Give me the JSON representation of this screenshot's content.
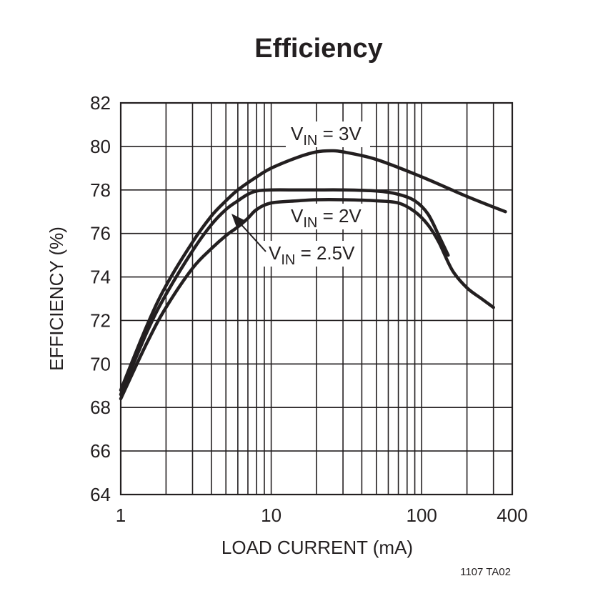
{
  "chart_data": {
    "type": "line",
    "title": "Efficiency",
    "xlabel": "LOAD CURRENT (mA)",
    "ylabel": "EFFICIENCY (%)",
    "xscale": "log",
    "xlim": [
      1,
      400
    ],
    "ylim": [
      64,
      82
    ],
    "x_ticks": [
      1,
      10,
      100,
      400
    ],
    "x_tick_labels": [
      "1",
      "10",
      "100",
      "400"
    ],
    "y_ticks": [
      64,
      66,
      68,
      70,
      72,
      74,
      76,
      78,
      80,
      82
    ],
    "y_tick_labels": [
      "64",
      "66",
      "68",
      "70",
      "72",
      "74",
      "76",
      "78",
      "80",
      "82"
    ],
    "grid": true,
    "series": [
      {
        "name": "VIN = 3V",
        "label_main": "V",
        "label_sub": "IN",
        "label_rest": " = 3V",
        "x": [
          1,
          1.5,
          2,
          3,
          4,
          5,
          6,
          8,
          10,
          15,
          20,
          25,
          30,
          50,
          100,
          200,
          360
        ],
        "y": [
          68.8,
          71.8,
          73.6,
          75.6,
          76.8,
          77.5,
          78.0,
          78.6,
          79.0,
          79.5,
          79.75,
          79.8,
          79.75,
          79.4,
          78.6,
          77.7,
          77.0
        ]
      },
      {
        "name": "VIN = 2.5V",
        "label_main": "V",
        "label_sub": "IN",
        "label_rest": " = 2.5V",
        "x": [
          1,
          1.5,
          2,
          3,
          4,
          5,
          6,
          7,
          8,
          10,
          15,
          20,
          30,
          50,
          70,
          90,
          110,
          130,
          150
        ],
        "y": [
          68.6,
          71.5,
          73.2,
          75.2,
          76.4,
          77.1,
          77.5,
          77.8,
          77.95,
          78.0,
          78.0,
          78.0,
          78.0,
          77.95,
          77.8,
          77.5,
          76.9,
          75.9,
          75.0
        ]
      },
      {
        "name": "VIN = 2V",
        "label_main": "V",
        "label_sub": "IN",
        "label_rest": " = 2V",
        "x": [
          1,
          1.5,
          2,
          3,
          4,
          5,
          6,
          7,
          8,
          10,
          15,
          20,
          30,
          50,
          70,
          90,
          110,
          130,
          160,
          200,
          250,
          300
        ],
        "y": [
          68.4,
          71.0,
          72.6,
          74.4,
          75.3,
          75.9,
          76.3,
          76.7,
          77.1,
          77.4,
          77.5,
          77.55,
          77.55,
          77.5,
          77.4,
          77.0,
          76.4,
          75.6,
          74.3,
          73.5,
          73.0,
          72.6
        ]
      }
    ],
    "figure_code": "1107 TA02"
  }
}
